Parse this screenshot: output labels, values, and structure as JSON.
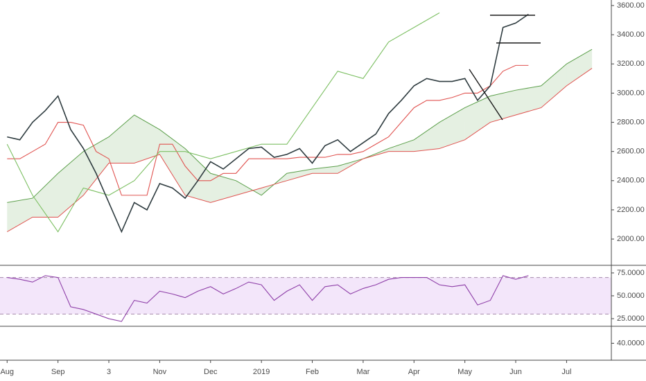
{
  "chart_data": [
    {
      "type": "line",
      "xlim": [
        -0.14,
        11.88
      ],
      "xticks": [
        {
          "value": 0,
          "label": "Aug"
        },
        {
          "value": 1,
          "label": "Sep"
        },
        {
          "value": 2,
          "label": "3"
        },
        {
          "value": 3,
          "label": "Nov"
        },
        {
          "value": 4,
          "label": "Dec"
        },
        {
          "value": 5,
          "label": "2019"
        },
        {
          "value": 6,
          "label": "Feb"
        },
        {
          "value": 7,
          "label": "Mar"
        },
        {
          "value": 8,
          "label": "Apr"
        },
        {
          "value": 9,
          "label": "May"
        },
        {
          "value": 10,
          "label": "Jun"
        },
        {
          "value": 11,
          "label": "Jul"
        }
      ],
      "ylim": [
        1820,
        3638
      ],
      "yticks": [
        {
          "value": 2000,
          "label": "2000.00"
        },
        {
          "value": 2200,
          "label": "2200.00"
        },
        {
          "value": 2400,
          "label": "2400.00"
        },
        {
          "value": 2600,
          "label": "2600.00"
        },
        {
          "value": 2800,
          "label": "2800.00"
        },
        {
          "value": 3000,
          "label": "3000.00"
        },
        {
          "value": 3200,
          "label": "3200.00"
        },
        {
          "value": 3400,
          "label": "3400.00"
        },
        {
          "value": 3600,
          "label": "3600.00"
        }
      ],
      "cloud": {
        "x": [
          0,
          0.5,
          1,
          1.5,
          2,
          2.5,
          3,
          3.5,
          4,
          4.5,
          5,
          5.5,
          6,
          6.5,
          7,
          7.5,
          8,
          8.5,
          9,
          9.5,
          10,
          10.5,
          11,
          11.5
        ],
        "senkou_a": [
          2250,
          2280,
          2450,
          2600,
          2700,
          2850,
          2750,
          2620,
          2450,
          2400,
          2300,
          2450,
          2480,
          2500,
          2550,
          2620,
          2680,
          2800,
          2900,
          2980,
          3020,
          3050,
          3200,
          3300
        ],
        "senkou_b": [
          2050,
          2150,
          2150,
          2300,
          2520,
          2520,
          2580,
          2300,
          2250,
          2300,
          2350,
          2400,
          2450,
          2450,
          2550,
          2600,
          2600,
          2620,
          2680,
          2800,
          2850,
          2900,
          3050,
          3170
        ],
        "colors": [
          "#5b9f4a",
          "#e0524f"
        ]
      },
      "series": [
        {
          "color": "#e0524f",
          "x": [
            0,
            0.25,
            0.5,
            0.75,
            1,
            1.25,
            1.5,
            1.75,
            2,
            2.25,
            2.5,
            2.75,
            3,
            3.25,
            3.5,
            3.75,
            4,
            4.25,
            4.5,
            4.75,
            5,
            5.25,
            5.5,
            5.75,
            6,
            6.25,
            6.5,
            6.75,
            7,
            7.25,
            7.5,
            7.75,
            8,
            8.25,
            8.5,
            8.75,
            9,
            9.25,
            9.5,
            9.75,
            10,
            10.25
          ],
          "values": [
            2550,
            2550,
            2600,
            2650,
            2800,
            2800,
            2780,
            2600,
            2550,
            2300,
            2300,
            2300,
            2650,
            2650,
            2500,
            2400,
            2400,
            2450,
            2450,
            2550,
            2550,
            2550,
            2550,
            2560,
            2560,
            2560,
            2580,
            2580,
            2600,
            2650,
            2700,
            2800,
            2900,
            2950,
            2950,
            2970,
            3000,
            3000,
            3050,
            3150,
            3190,
            3190
          ]
        },
        {
          "color": "#7cbf62",
          "x": [
            0,
            0.5,
            1,
            1.5,
            2,
            2.5,
            3,
            3.5,
            4,
            4.5,
            5,
            5.5,
            6,
            6.5,
            7,
            7.5,
            8,
            8.5
          ],
          "values": [
            2650,
            2300,
            2050,
            2350,
            2300,
            2400,
            2600,
            2600,
            2550,
            2600,
            2650,
            2650,
            2900,
            3150,
            3100,
            3350,
            3450,
            3550
          ]
        },
        {
          "color": "#2e3b3f",
          "x": [
            0,
            0.25,
            0.5,
            0.75,
            1,
            1.25,
            1.5,
            1.75,
            2,
            2.25,
            2.5,
            2.75,
            3,
            3.25,
            3.5,
            3.75,
            4,
            4.25,
            4.5,
            4.75,
            5,
            5.25,
            5.5,
            5.75,
            6,
            6.25,
            6.5,
            6.75,
            7,
            7.25,
            7.5,
            7.75,
            8,
            8.25,
            8.5,
            8.75,
            9,
            9.25,
            9.5,
            9.75,
            10,
            10.25
          ],
          "values": [
            2700,
            2680,
            2800,
            2880,
            2980,
            2750,
            2620,
            2450,
            2250,
            2050,
            2250,
            2200,
            2380,
            2350,
            2280,
            2400,
            2530,
            2480,
            2550,
            2620,
            2630,
            2560,
            2580,
            2620,
            2520,
            2640,
            2680,
            2600,
            2660,
            2720,
            2860,
            2950,
            3050,
            3100,
            3080,
            3080,
            3100,
            2950,
            3050,
            3450,
            3480,
            3540
          ]
        }
      ]
    },
    {
      "type": "line",
      "ylim": [
        16.7,
        83.3
      ],
      "yticks": [
        {
          "value": 25,
          "label": "25.0000"
        },
        {
          "value": 50,
          "label": "50.0000"
        },
        {
          "value": 75,
          "label": "75.0000"
        }
      ],
      "bands": [
        30,
        70
      ],
      "series": [
        {
          "color": "#8e3fa8",
          "x": [
            0,
            0.25,
            0.5,
            0.75,
            1,
            1.25,
            1.5,
            1.75,
            2,
            2.25,
            2.5,
            2.75,
            3,
            3.25,
            3.5,
            3.75,
            4,
            4.25,
            4.5,
            4.75,
            5,
            5.25,
            5.5,
            5.75,
            6,
            6.25,
            6.5,
            6.75,
            7,
            7.25,
            7.5,
            7.75,
            8,
            8.25,
            8.5,
            8.75,
            9,
            9.25,
            9.5,
            9.75,
            10,
            10.25
          ],
          "values": [
            70,
            68,
            65,
            72,
            70,
            38,
            35,
            30,
            25,
            22,
            45,
            42,
            55,
            52,
            48,
            55,
            60,
            52,
            58,
            65,
            62,
            45,
            55,
            62,
            45,
            60,
            62,
            52,
            58,
            62,
            68,
            70,
            70,
            70,
            62,
            60,
            62,
            40,
            45,
            72,
            68,
            72
          ]
        }
      ]
    },
    {
      "type": "line",
      "ylim": [
        33,
        47
      ],
      "yticks": [
        {
          "value": 40,
          "label": "40.0000"
        }
      ],
      "series": []
    }
  ]
}
